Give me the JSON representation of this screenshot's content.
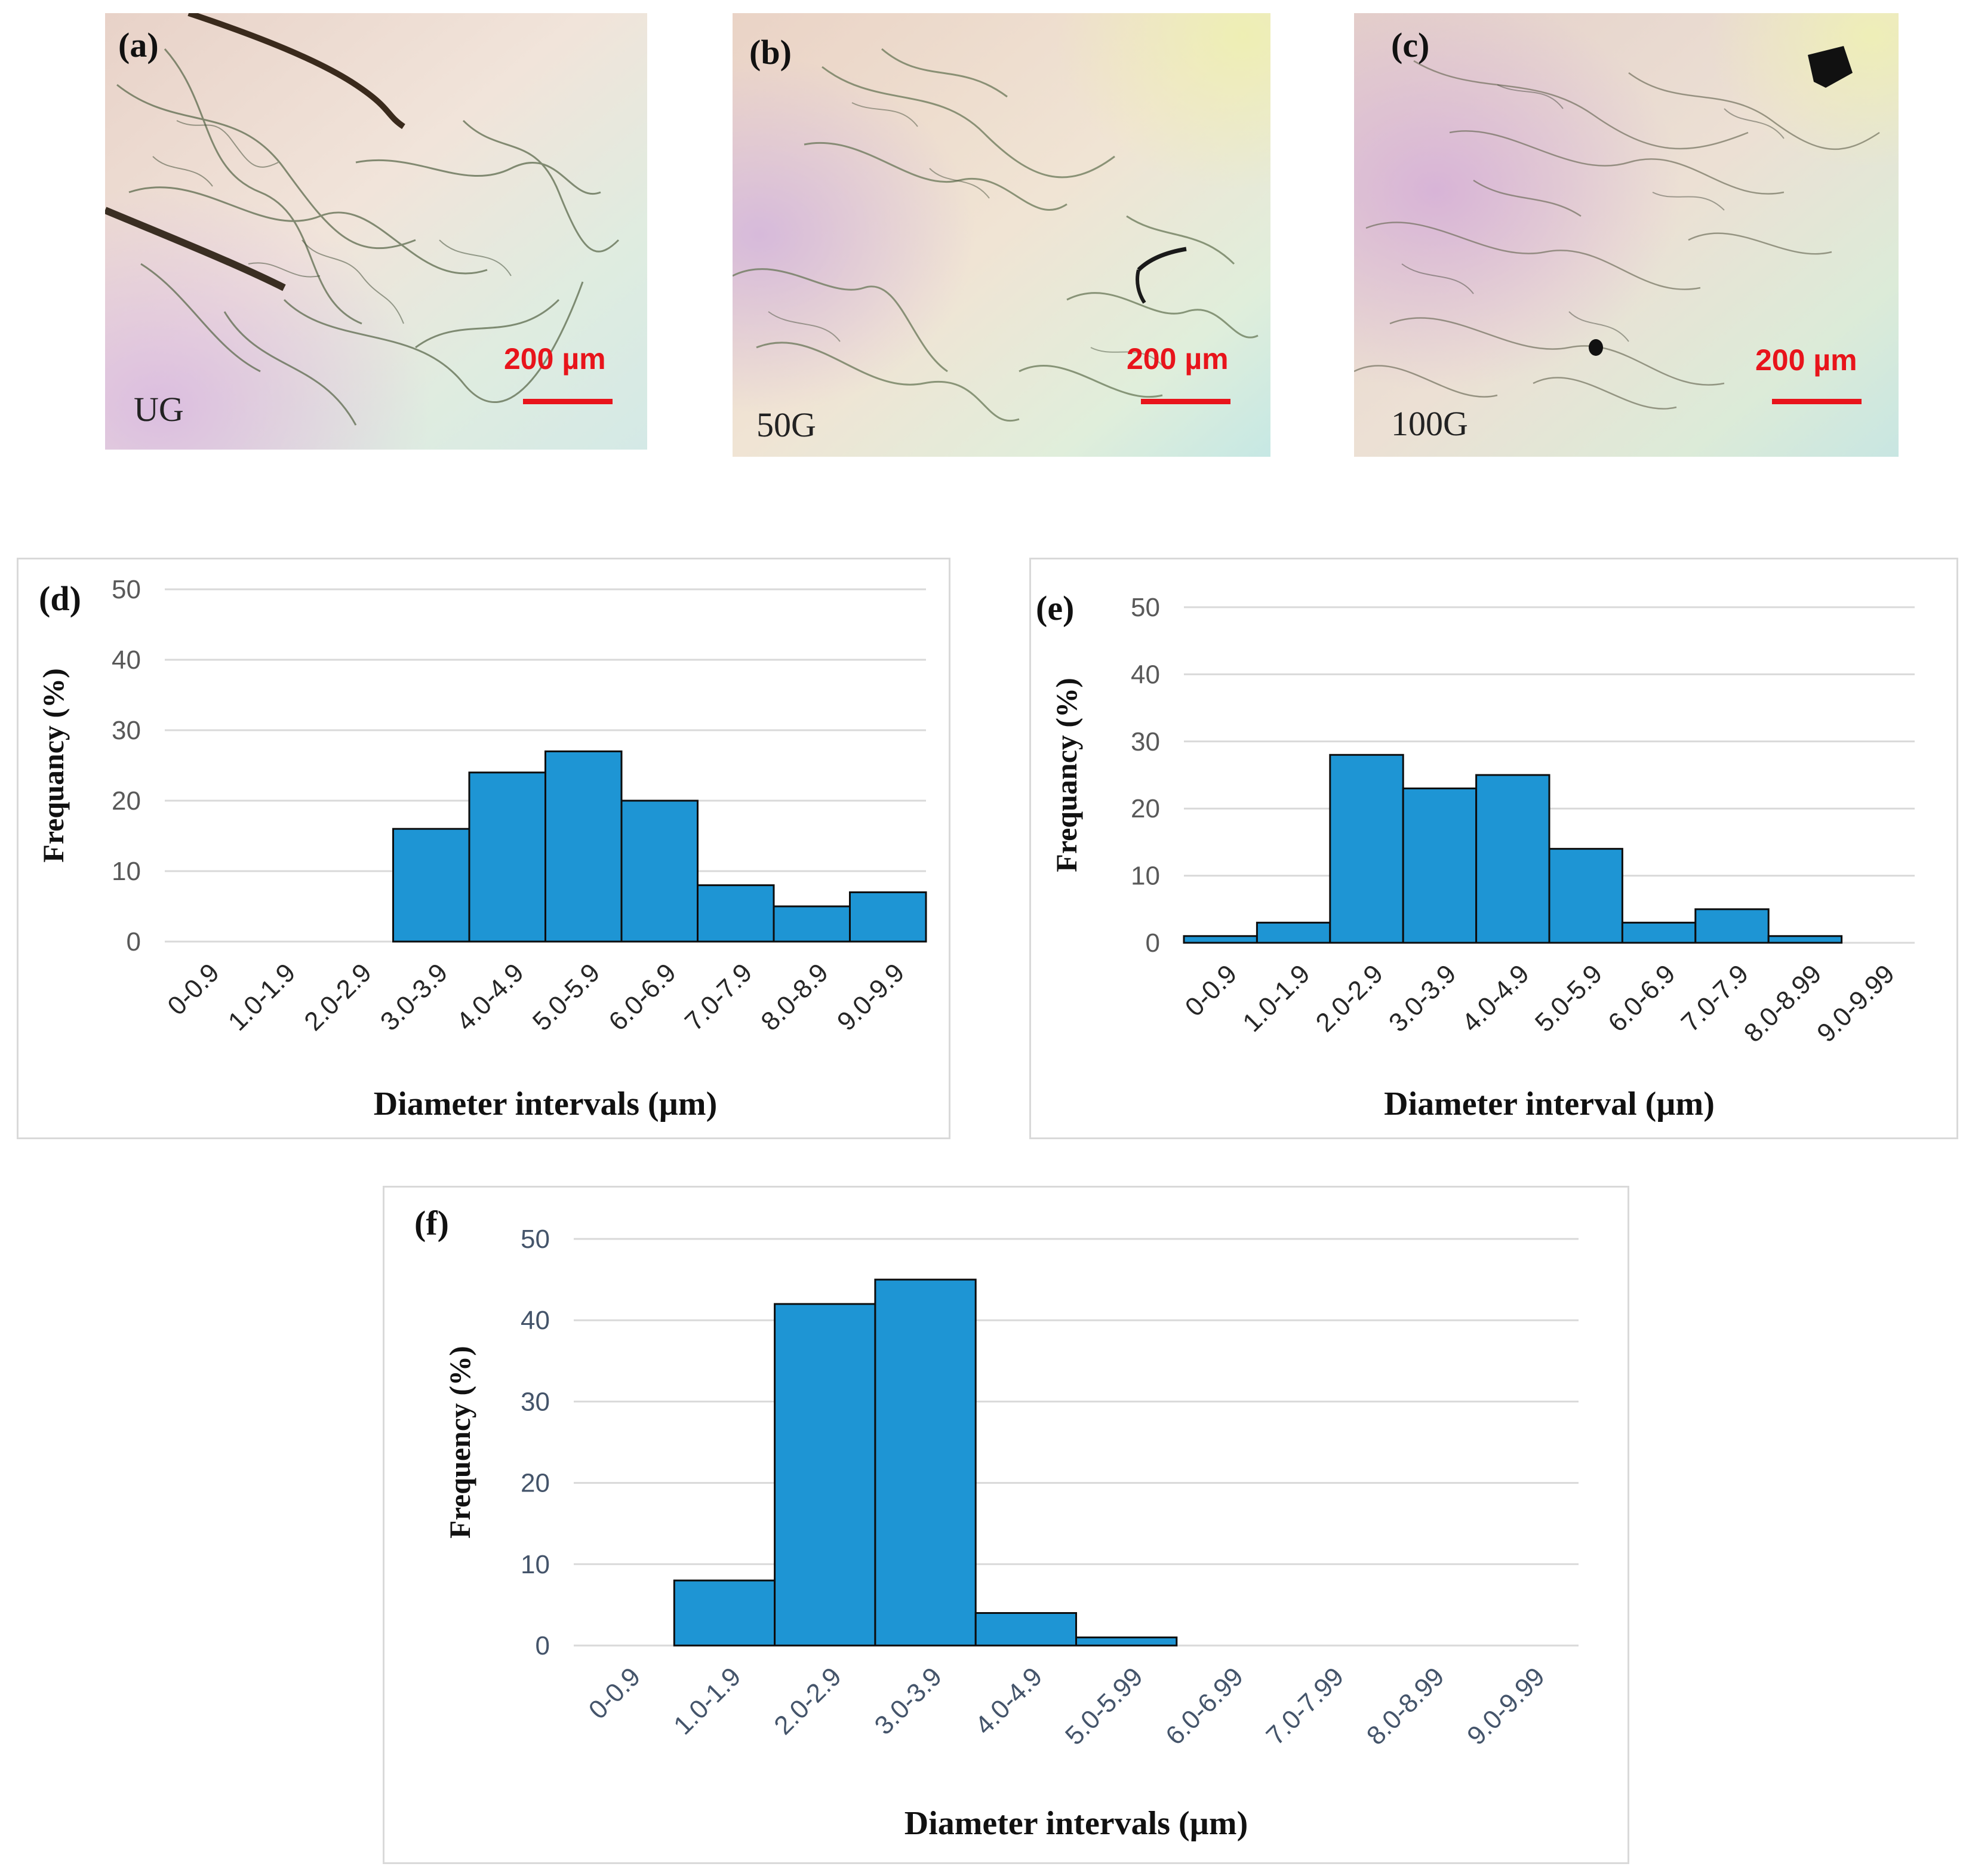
{
  "micrographs": [
    {
      "tag": "(a)",
      "sample": "UG",
      "scale": "200 µm"
    },
    {
      "tag": "(b)",
      "sample": "50G",
      "scale": "200 µm"
    },
    {
      "tag": "(c)",
      "sample": "100G",
      "scale": "200 µm"
    }
  ],
  "colors": {
    "bar": "#1e95d4",
    "bar_edge": "#0d0d0d",
    "grid": "#d9d9d9",
    "scale_bar": "#e8141b"
  },
  "chart_data": [
    {
      "panel": "(d)",
      "type": "bar",
      "title": "",
      "categories": [
        "0-0.9",
        "1.0-1.9",
        "2.0-2.9",
        "3.0-3.9",
        "4.0-4.9",
        "5.0-5.9",
        "6.0-6.9",
        "7.0-7.9",
        "8.0-8.9",
        "9.0-9.9"
      ],
      "values": [
        0,
        0,
        0,
        16,
        24,
        27,
        20,
        8,
        5,
        7
      ],
      "xlabel": "Diameter intervals (µm)",
      "ylabel": "Frequancy (%)",
      "ylim": [
        0,
        50
      ],
      "yticks": [
        "0",
        "10",
        "20",
        "30",
        "40",
        "50"
      ],
      "grid": true
    },
    {
      "panel": "(e)",
      "type": "bar",
      "title": "",
      "categories": [
        "0-0.9",
        "1.0-1.9",
        "2.0-2.9",
        "3.0-3.9",
        "4.0-4.9",
        "5.0-5.9",
        "6.0-6.9",
        "7.0-7.9",
        "8.0-8.99",
        "9.0-9.99"
      ],
      "values": [
        1,
        3,
        28,
        23,
        25,
        14,
        3,
        5,
        1,
        0
      ],
      "xlabel": "Diameter interval (µm)",
      "ylabel": "Frequancy (%)",
      "ylim": [
        0,
        50
      ],
      "yticks": [
        "0",
        "10",
        "20",
        "30",
        "40",
        "50"
      ],
      "grid": true
    },
    {
      "panel": "(f)",
      "type": "bar",
      "title": "",
      "categories": [
        "0-0.9",
        "1.0-1.9",
        "2.0-2.9",
        "3.0-3.9",
        "4.0-4.9",
        "5.0-5.99",
        "6.0-6.99",
        "7.0-7.99",
        "8.0-8.99",
        "9.0-9.99"
      ],
      "values": [
        0,
        8,
        42,
        45,
        4,
        1,
        0,
        0,
        0,
        0
      ],
      "xlabel": "Diameter intervals (µm)",
      "ylabel": "Frequency (%)",
      "ylim": [
        0,
        50
      ],
      "yticks": [
        "0",
        "10",
        "20",
        "30",
        "40",
        "50"
      ],
      "grid": true
    }
  ]
}
